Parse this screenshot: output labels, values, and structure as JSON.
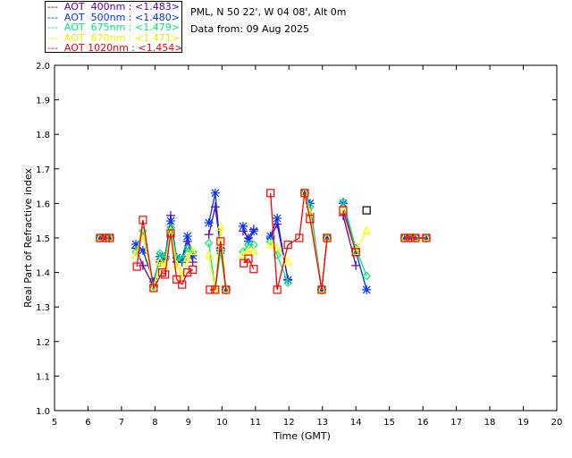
{
  "header": {
    "location": "PML, N 50 22', W 04 08', Alt 0m",
    "date": "Data from: 09 Aug 2025"
  },
  "chart_data": {
    "type": "scatter",
    "xlabel": "Time (GMT)",
    "ylabel": "Real Part of Refractive index",
    "xlim": [
      5,
      20
    ],
    "ylim": [
      1.0,
      2.0
    ],
    "xticks": [
      "5",
      "6",
      "7",
      "8",
      "9",
      "10",
      "11",
      "12",
      "13",
      "14",
      "15",
      "16",
      "17",
      "18",
      "19",
      "20"
    ],
    "yticks": [
      "1.0",
      "1.1",
      "1.2",
      "1.3",
      "1.4",
      "1.5",
      "1.6",
      "1.7",
      "1.8",
      "1.9",
      "2.0"
    ],
    "legend_position": "top-left, outside",
    "series": [
      {
        "name": "AOT  400nm : <1.483>",
        "label": "---  AOT  400nm : <1.483>",
        "color": "#6600aa",
        "marker": "plus",
        "x": [
          6.36,
          6.52,
          6.65,
          7.43,
          7.64,
          7.96,
          8.15,
          8.3,
          8.47,
          8.65,
          8.81,
          8.97,
          9.13,
          9.61,
          9.8,
          9.96,
          10.12,
          10.63,
          10.79,
          10.95,
          11.45,
          11.65,
          11.97,
          12.47,
          12.63,
          12.98,
          13.14,
          13.62,
          14.0,
          15.46,
          15.62,
          15.78,
          16.1
        ],
        "y": [
          1.5,
          1.5,
          1.5,
          1.47,
          1.42,
          1.36,
          1.43,
          1.44,
          1.565,
          1.43,
          1.43,
          1.49,
          1.43,
          1.51,
          1.59,
          1.47,
          1.35,
          1.52,
          1.5,
          1.525,
          1.5,
          1.54,
          1.38,
          1.63,
          1.57,
          1.35,
          1.5,
          1.565,
          1.42,
          1.5,
          1.5,
          1.5,
          1.5
        ]
      },
      {
        "name": "AOT  500nm : <1.480>",
        "label": "---  AOT  500nm : <1.480>",
        "color": "#0033ff",
        "marker": "asterisk",
        "x": [
          6.36,
          6.52,
          6.65,
          7.43,
          7.64,
          7.96,
          8.15,
          8.3,
          8.47,
          8.65,
          8.81,
          8.97,
          9.13,
          9.61,
          9.8,
          9.96,
          10.12,
          10.63,
          10.79,
          10.95,
          11.45,
          11.65,
          11.97,
          12.47,
          12.63,
          12.98,
          13.14,
          13.62,
          14.0,
          14.32,
          15.46,
          15.62,
          15.78,
          16.1
        ],
        "y": [
          1.5,
          1.5,
          1.5,
          1.482,
          1.464,
          1.373,
          1.446,
          1.446,
          1.549,
          1.443,
          1.438,
          1.505,
          1.448,
          1.544,
          1.63,
          1.464,
          1.35,
          1.534,
          1.49,
          1.52,
          1.505,
          1.557,
          1.378,
          1.63,
          1.6,
          1.35,
          1.5,
          1.6,
          1.46,
          1.35,
          1.5,
          1.5,
          1.5,
          1.5
        ]
      },
      {
        "name": "AOT  675nm : <1.479>",
        "label": "---  AOT  675nm : <1.479>",
        "color": "#00ee77",
        "marker": "diamond",
        "x": [
          6.36,
          6.52,
          6.65,
          7.43,
          7.64,
          7.96,
          8.15,
          8.3,
          8.47,
          8.65,
          8.81,
          8.97,
          9.13,
          9.61,
          9.8,
          9.96,
          10.12,
          10.63,
          10.79,
          10.95,
          11.45,
          11.65,
          11.97,
          12.47,
          12.63,
          12.98,
          13.14,
          13.62,
          14.0,
          14.32,
          15.46,
          15.62,
          15.78,
          16.1
        ],
        "y": [
          1.5,
          1.5,
          1.5,
          1.46,
          1.52,
          1.36,
          1.455,
          1.44,
          1.53,
          1.44,
          1.44,
          1.47,
          1.46,
          1.485,
          1.35,
          1.46,
          1.35,
          1.46,
          1.48,
          1.48,
          1.49,
          1.45,
          1.37,
          1.63,
          1.59,
          1.35,
          1.5,
          1.605,
          1.47,
          1.39,
          1.5,
          1.5,
          1.5,
          1.5
        ]
      },
      {
        "name": "AOT  870nm : <1.471>",
        "label": "---  AOT  870nm : <1.471>",
        "color": "#ffff00",
        "marker": "triangle",
        "x": [
          6.36,
          6.52,
          6.65,
          7.43,
          7.64,
          7.96,
          8.15,
          8.3,
          8.47,
          8.65,
          8.81,
          8.97,
          9.13,
          9.61,
          9.8,
          9.96,
          10.12,
          10.63,
          10.79,
          10.95,
          11.45,
          11.65,
          11.97,
          12.47,
          12.63,
          12.98,
          13.14,
          13.62,
          14.0,
          14.32,
          15.46,
          15.62,
          15.78,
          16.1
        ],
        "y": [
          1.5,
          1.5,
          1.5,
          1.45,
          1.51,
          1.355,
          1.43,
          1.42,
          1.52,
          1.42,
          1.39,
          1.44,
          1.46,
          1.45,
          1.35,
          1.53,
          1.35,
          1.45,
          1.46,
          1.46,
          1.48,
          1.47,
          1.43,
          1.63,
          1.57,
          1.35,
          1.5,
          1.58,
          1.46,
          1.52,
          1.5,
          1.5,
          1.5,
          1.5
        ]
      },
      {
        "name": "AOT 1020nm : <1.454>",
        "label": "---  AOT 1020nm : <1.454>",
        "color": "#ff0000",
        "marker": "square",
        "x": [
          6.36,
          6.52,
          6.65,
          7.46,
          7.64,
          7.96,
          8.22,
          8.3,
          8.47,
          8.65,
          8.81,
          8.97,
          9.13,
          9.64,
          9.8,
          9.96,
          10.12,
          10.65,
          10.79,
          10.95,
          11.45,
          11.65,
          11.97,
          12.31,
          12.47,
          12.63,
          12.98,
          13.14,
          13.62,
          14.0,
          15.46,
          15.62,
          15.78,
          16.1
        ],
        "y": [
          1.5,
          1.5,
          1.5,
          1.417,
          1.552,
          1.355,
          1.4,
          1.394,
          1.513,
          1.38,
          1.365,
          1.4,
          1.408,
          1.35,
          1.35,
          1.49,
          1.35,
          1.427,
          1.44,
          1.41,
          1.63,
          1.35,
          1.48,
          1.5,
          1.63,
          1.555,
          1.35,
          1.5,
          1.58,
          1.459,
          1.5,
          1.5,
          1.5,
          1.5
        ]
      },
      {
        "name": "",
        "color": "#000000",
        "marker": "square",
        "x": [
          14.32
        ],
        "y": [
          1.58
        ]
      }
    ]
  }
}
